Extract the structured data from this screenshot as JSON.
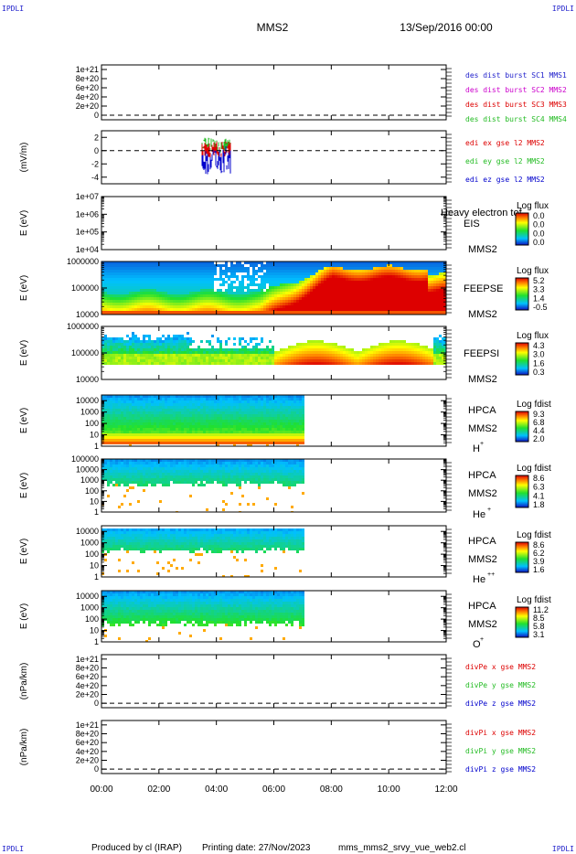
{
  "header": {
    "corner_tl": "IPDLI",
    "corner_tr": "IPDLI",
    "corner_bl": "IPDLI",
    "corner_br": "IPDLI",
    "spacecraft": "MMS2",
    "date": "13/Sep/2016 00:00"
  },
  "footer": {
    "produced_by": "Produced by cl (IRAP)",
    "printing_date": "Printing date: 27/Nov/2023",
    "filename": "mms_mms2_srvy_vue_web2.cl"
  },
  "colors": {
    "red": "#dd0000",
    "magenta": "#cc00cc",
    "green": "#22bb22",
    "blue": "#0000cc",
    "label_blue": "#2222cc"
  },
  "time_axis": {
    "ticks": [
      "00:00",
      "02:00",
      "04:00",
      "06:00",
      "08:00",
      "10:00",
      "12:00"
    ],
    "hours": [
      0,
      2,
      4,
      6,
      8,
      10,
      12
    ],
    "range_hours": [
      0,
      12
    ]
  },
  "chart_data": [
    {
      "type": "line",
      "name": "des-dist-burst",
      "ylabel": "",
      "yticks": [
        "1e+21",
        "8e+20",
        "6e+20",
        "4e+20",
        "2e+20",
        "0"
      ],
      "yvals": [
        1e+21,
        8e+20,
        6e+20,
        4e+20,
        2e+20,
        0
      ],
      "ylim": [
        -1e+20,
        1.1e+21
      ],
      "zero_line": true,
      "legend": [
        {
          "text": "des dist burst SC1 MMS1",
          "color": "#2222cc"
        },
        {
          "text": "des dist burst SC2 MMS2",
          "color": "#cc00cc"
        },
        {
          "text": "des dist burst SC3 MMS3",
          "color": "#dd0000"
        },
        {
          "text": "des dist burst SC4 MMS4",
          "color": "#22bb22"
        }
      ]
    },
    {
      "type": "line",
      "name": "edi-e",
      "ylabel": "(mV/m)",
      "yticks": [
        "2",
        "0",
        "-2",
        "-4"
      ],
      "yvals": [
        2,
        0,
        -2,
        -4
      ],
      "ylim": [
        -5,
        3
      ],
      "zero_line": true,
      "data_span_hours": [
        3.5,
        4.5
      ],
      "legend": [
        {
          "text": "edi ex gse l2 MMS2",
          "color": "#dd0000"
        },
        {
          "text": "edi ey gse l2 MMS2",
          "color": "#22bb22"
        },
        {
          "text": "edi ez gse l2 MMS2",
          "color": "#0000cc"
        }
      ]
    },
    {
      "type": "heatmap",
      "name": "eis",
      "ylabel": "E (eV)",
      "yticks": [
        "1e+07",
        "1e+06",
        "1e+05",
        "1e+04"
      ],
      "ylog": [
        4,
        7
      ],
      "labels": [
        "EIS",
        "MMS2"
      ],
      "overlap_text": "Heavy electron tof",
      "colorbar_title": "Log flux",
      "colorbar_ticks": [
        "0.0",
        "0.0",
        "0.0",
        "0.0"
      ],
      "coverage": "none"
    },
    {
      "type": "heatmap",
      "name": "feepse",
      "ylabel": "E (eV)",
      "yticks": [
        "1000000",
        "100000",
        "10000"
      ],
      "ylog": [
        4,
        6
      ],
      "labels": [
        "FEEPSE",
        "MMS2"
      ],
      "colorbar_title": "Log flux",
      "colorbar_ticks": [
        "5.2",
        "3.3",
        "1.4",
        "-0.5"
      ],
      "coverage_hours": [
        0,
        12
      ]
    },
    {
      "type": "heatmap",
      "name": "feepsi",
      "ylabel": "E (eV)",
      "yticks": [
        "1000000",
        "100000",
        "10000"
      ],
      "ylog": [
        4,
        6
      ],
      "labels": [
        "FEEPSI",
        "MMS2"
      ],
      "colorbar_title": "Log flux",
      "colorbar_ticks": [
        "4.3",
        "3.0",
        "1.6",
        "0.3"
      ],
      "coverage_hours": [
        0,
        12
      ]
    },
    {
      "type": "heatmap",
      "name": "hpca-h",
      "ylabel": "E (eV)",
      "yticks": [
        "10000",
        "1000",
        "100",
        "10",
        "1"
      ],
      "ylog": [
        0,
        4.5
      ],
      "labels": [
        "HPCA",
        "MMS2"
      ],
      "species": "H",
      "species_sup": "+",
      "colorbar_title": "Log fdist",
      "colorbar_ticks": [
        "9.3",
        "6.8",
        "4.4",
        "2.0"
      ],
      "coverage_hours": [
        0,
        7
      ]
    },
    {
      "type": "heatmap",
      "name": "hpca-he",
      "ylabel": "E (eV)",
      "yticks": [
        "100000",
        "10000",
        "1000",
        "100",
        "10",
        "1"
      ],
      "ylog": [
        0,
        5
      ],
      "labels": [
        "HPCA",
        "MMS2"
      ],
      "species": "He",
      "species_sup": "+",
      "colorbar_title": "Log fdist",
      "colorbar_ticks": [
        "8.6",
        "6.3",
        "4.1",
        "1.8"
      ],
      "coverage_hours": [
        0,
        7
      ]
    },
    {
      "type": "heatmap",
      "name": "hpca-hepp",
      "ylabel": "E (eV)",
      "yticks": [
        "10000",
        "1000",
        "100",
        "10",
        "1"
      ],
      "ylog": [
        0,
        4.5
      ],
      "labels": [
        "HPCA",
        "MMS2"
      ],
      "species": "He",
      "species_sup": "++",
      "colorbar_title": "Log fdist",
      "colorbar_ticks": [
        "8.6",
        "6.2",
        "3.9",
        "1.6"
      ],
      "coverage_hours": [
        0,
        7
      ]
    },
    {
      "type": "heatmap",
      "name": "hpca-o",
      "ylabel": "E (eV)",
      "yticks": [
        "10000",
        "1000",
        "100",
        "10",
        "1"
      ],
      "ylog": [
        0,
        4.5
      ],
      "labels": [
        "HPCA",
        "MMS2"
      ],
      "species": "O",
      "species_sup": "+",
      "colorbar_title": "Log fdist",
      "colorbar_ticks": [
        "11.2",
        "8.5",
        "5.8",
        "3.1"
      ],
      "coverage_hours": [
        0,
        7
      ]
    },
    {
      "type": "line",
      "name": "divpe",
      "ylabel": "(nPa/km)",
      "yticks": [
        "1e+21",
        "8e+20",
        "6e+20",
        "4e+20",
        "2e+20",
        "0"
      ],
      "yvals": [
        1e+21,
        8e+20,
        6e+20,
        4e+20,
        2e+20,
        0
      ],
      "ylim": [
        -1e+20,
        1.1e+21
      ],
      "zero_line": true,
      "legend": [
        {
          "text": "divPe x gse MMS2",
          "color": "#dd0000"
        },
        {
          "text": "divPe y gse MMS2",
          "color": "#22bb22"
        },
        {
          "text": "divPe z gse MMS2",
          "color": "#0000cc"
        }
      ]
    },
    {
      "type": "line",
      "name": "divpi",
      "ylabel": "(nPa/km)",
      "yticks": [
        "1e+21",
        "8e+20",
        "6e+20",
        "4e+20",
        "2e+20",
        "0"
      ],
      "yvals": [
        1e+21,
        8e+20,
        6e+20,
        4e+20,
        2e+20,
        0
      ],
      "ylim": [
        -1e+20,
        1.1e+21
      ],
      "zero_line": true,
      "legend": [
        {
          "text": "divPi x gse MMS2",
          "color": "#dd0000"
        },
        {
          "text": "divPi y gse MMS2",
          "color": "#22bb22"
        },
        {
          "text": "divPi z gse MMS2",
          "color": "#0000cc"
        }
      ]
    }
  ]
}
